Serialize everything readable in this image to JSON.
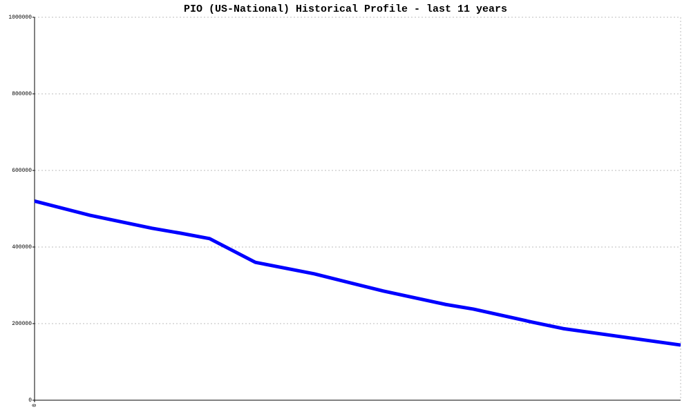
{
  "chart_data": {
    "type": "line",
    "title": "PIO (US-National) Historical Profile - last 11 years",
    "x": [
      0,
      0.94,
      2.0,
      2.49,
      2.98,
      3.76,
      4.76,
      5.94,
      7.0,
      7.47,
      8.47,
      9.0,
      11
    ],
    "series": [
      {
        "color": "#0000ff",
        "values": [
          520000,
          483000,
          449000,
          436000,
          422000,
          360000,
          330000,
          285000,
          250000,
          238000,
          204000,
          187000,
          144000
        ]
      }
    ],
    "xlim": [
      0,
      11
    ],
    "xticks": [
      0
    ],
    "ylim": [
      0,
      1000000
    ],
    "yticks": [
      0,
      200000,
      400000,
      600000,
      800000,
      1000000
    ],
    "grid": true
  }
}
